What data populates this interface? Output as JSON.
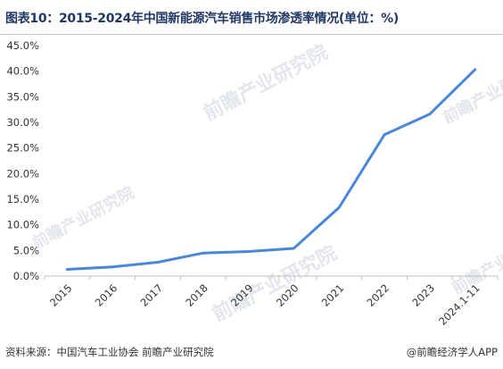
{
  "header": {
    "title": "图表10：2015-2024年中国新能源汽车销售市场渗透率情况(单位：%)"
  },
  "footer": {
    "source": "资料来源：中国汽车工业协会 前瞻产业研究院",
    "brand": "@前瞻经济学人APP"
  },
  "watermark": {
    "text": "前瞻产业研究院"
  },
  "colors": {
    "line": "#4a86d9",
    "axis": "#bfbfbf",
    "tick_text": "#333333",
    "title": "#1f3864"
  },
  "chart_data": {
    "type": "line",
    "title": "",
    "xlabel": "",
    "ylabel": "",
    "categories": [
      "2015",
      "2016",
      "2017",
      "2018",
      "2019",
      "2020",
      "2021",
      "2022",
      "2023",
      "2024.1-11"
    ],
    "series": [
      {
        "values": [
          1.3,
          1.8,
          2.7,
          4.5,
          4.8,
          5.4,
          13.4,
          27.6,
          31.6,
          40.3
        ]
      }
    ],
    "ylim": [
      0,
      45
    ],
    "yticks": [
      "0.0%",
      "5.0%",
      "10.0%",
      "15.0%",
      "20.0%",
      "25.0%",
      "30.0%",
      "35.0%",
      "40.0%",
      "45.0%"
    ],
    "grid": false,
    "legend": "none"
  }
}
